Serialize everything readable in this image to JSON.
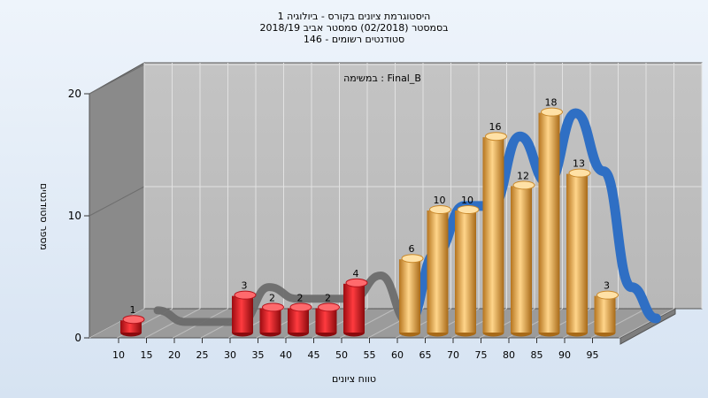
{
  "chart_data": {
    "type": "bar",
    "title_lines": [
      "היסטוגרמת ציונים בקורס - ביולוגיה 1",
      "בסמסטר  (02/2018)  סמסטר אביב 2018/19",
      "146 - סטודנטים רשומים"
    ],
    "annotation": "במשימה : Final_B",
    "xlabel": "טווח ציונים",
    "ylabel": "מספר סטודנטים",
    "x_ticks": [
      "10",
      "15",
      "20",
      "25",
      "30",
      "35",
      "40",
      "45",
      "50",
      "55",
      "60",
      "65",
      "70",
      "75",
      "80",
      "85",
      "90",
      "95"
    ],
    "y_ticks": [
      "0",
      "10",
      "20"
    ],
    "ylim": [
      0,
      20
    ],
    "grid": true,
    "series": [
      {
        "values": [
          1,
          0,
          0,
          0,
          3,
          2,
          2,
          2,
          4,
          0,
          6,
          10,
          10,
          16,
          12,
          18,
          13,
          3
        ],
        "data_labels": [
          "1",
          "",
          "",
          "",
          "3",
          "2",
          "2",
          "2",
          "4",
          "",
          "6",
          "10",
          "10",
          "16",
          "12",
          "18",
          "13",
          "3"
        ]
      }
    ],
    "bar_colors": {
      "below_pass": "#e8141c",
      "pass": "#eda943"
    },
    "curve_colors": {
      "low": "#6b6b6b",
      "high": "#2f6fc4"
    }
  }
}
